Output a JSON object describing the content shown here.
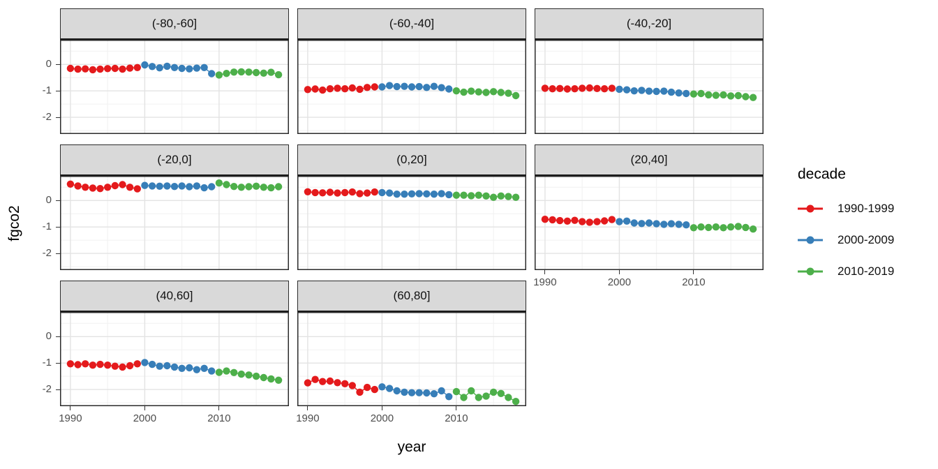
{
  "chart_data": {
    "type": "line",
    "title": "",
    "xlabel": "year",
    "ylabel": "fgco2",
    "xlim": [
      1988.6,
      2019.4
    ],
    "ylim": [
      -2.63,
      0.93
    ],
    "x_ticks": {
      "major": [
        1990,
        2000,
        2010
      ],
      "minor": [
        1995,
        2005,
        2015
      ],
      "labels": [
        "1990",
        "2000",
        "2010"
      ]
    },
    "y_ticks": {
      "major": [
        0,
        -1,
        -2
      ],
      "minor": [
        0.5,
        -0.5,
        -1.5,
        -2.5
      ],
      "labels": [
        "0",
        "-1",
        "-2"
      ]
    },
    "grid": "major+minor",
    "style": {
      "strip_bg": "#D9D9D9",
      "panel_border": "#2b2b2b",
      "grid_major": "#E3E3E3",
      "grid_minor": "#F1F1F1",
      "axis_text": "#4d4d4d"
    },
    "legend": {
      "title": "decade",
      "position": "right",
      "entries": [
        {
          "label": "1990-1999",
          "color": "#E41A1C"
        },
        {
          "label": "2000-2009",
          "color": "#377EB8"
        },
        {
          "label": "2010-2019",
          "color": "#4DAF4A"
        }
      ]
    },
    "facets": [
      {
        "label": "(-80,-60]",
        "series": [
          {
            "name": "1990-1999",
            "start_year": 1990,
            "values": [
              -0.15,
              -0.18,
              -0.17,
              -0.2,
              -0.18,
              -0.16,
              -0.15,
              -0.18,
              -0.14,
              -0.12
            ]
          },
          {
            "name": "2000-2009",
            "start_year": 2000,
            "values": [
              -0.02,
              -0.08,
              -0.13,
              -0.07,
              -0.12,
              -0.15,
              -0.17,
              -0.14,
              -0.12,
              -0.35
            ]
          },
          {
            "name": "2010-2019",
            "start_year": 2010,
            "values": [
              -0.4,
              -0.34,
              -0.29,
              -0.28,
              -0.29,
              -0.31,
              -0.33,
              -0.3,
              -0.39
            ]
          }
        ]
      },
      {
        "label": "(-60,-40]",
        "series": [
          {
            "name": "1990-1999",
            "start_year": 1990,
            "values": [
              -0.95,
              -0.93,
              -0.97,
              -0.92,
              -0.9,
              -0.92,
              -0.89,
              -0.94,
              -0.87,
              -0.85
            ]
          },
          {
            "name": "2000-2009",
            "start_year": 2000,
            "values": [
              -0.85,
              -0.8,
              -0.84,
              -0.83,
              -0.85,
              -0.84,
              -0.87,
              -0.83,
              -0.88,
              -0.93
            ]
          },
          {
            "name": "2010-2019",
            "start_year": 2010,
            "values": [
              -1.0,
              -1.05,
              -1.01,
              -1.04,
              -1.06,
              -1.03,
              -1.06,
              -1.09,
              -1.18
            ]
          }
        ]
      },
      {
        "label": "(-40,-20]",
        "series": [
          {
            "name": "1990-1999",
            "start_year": 1990,
            "values": [
              -0.9,
              -0.92,
              -0.91,
              -0.93,
              -0.92,
              -0.9,
              -0.89,
              -0.91,
              -0.92,
              -0.9
            ]
          },
          {
            "name": "2000-2009",
            "start_year": 2000,
            "values": [
              -0.94,
              -0.96,
              -1.0,
              -0.98,
              -1.01,
              -1.02,
              -1.01,
              -1.05,
              -1.08,
              -1.1
            ]
          },
          {
            "name": "2010-2019",
            "start_year": 2010,
            "values": [
              -1.12,
              -1.1,
              -1.15,
              -1.17,
              -1.15,
              -1.19,
              -1.18,
              -1.22,
              -1.25
            ]
          }
        ]
      },
      {
        "label": "(-20,0]",
        "series": [
          {
            "name": "1990-1999",
            "start_year": 1990,
            "values": [
              0.62,
              0.55,
              0.5,
              0.47,
              0.45,
              0.5,
              0.56,
              0.6,
              0.5,
              0.44
            ]
          },
          {
            "name": "2000-2009",
            "start_year": 2000,
            "values": [
              0.57,
              0.55,
              0.54,
              0.55,
              0.53,
              0.55,
              0.52,
              0.55,
              0.48,
              0.52
            ]
          },
          {
            "name": "2010-2019",
            "start_year": 2010,
            "values": [
              0.66,
              0.6,
              0.53,
              0.5,
              0.52,
              0.54,
              0.5,
              0.48,
              0.52
            ]
          }
        ]
      },
      {
        "label": "(0,20]",
        "series": [
          {
            "name": "1990-1999",
            "start_year": 1990,
            "values": [
              0.33,
              0.3,
              0.29,
              0.31,
              0.28,
              0.3,
              0.32,
              0.26,
              0.28,
              0.32
            ]
          },
          {
            "name": "2000-2009",
            "start_year": 2000,
            "values": [
              0.3,
              0.28,
              0.24,
              0.24,
              0.25,
              0.26,
              0.25,
              0.24,
              0.26,
              0.22
            ]
          },
          {
            "name": "2010-2019",
            "start_year": 2010,
            "values": [
              0.2,
              0.2,
              0.18,
              0.2,
              0.17,
              0.12,
              0.17,
              0.15,
              0.12
            ]
          }
        ]
      },
      {
        "label": "(20,40]",
        "series": [
          {
            "name": "1990-1999",
            "start_year": 1990,
            "values": [
              -0.71,
              -0.73,
              -0.76,
              -0.78,
              -0.75,
              -0.8,
              -0.82,
              -0.8,
              -0.77,
              -0.72
            ]
          },
          {
            "name": "2000-2009",
            "start_year": 2000,
            "values": [
              -0.8,
              -0.78,
              -0.85,
              -0.87,
              -0.85,
              -0.88,
              -0.9,
              -0.88,
              -0.9,
              -0.92
            ]
          },
          {
            "name": "2010-2019",
            "start_year": 2010,
            "values": [
              -1.03,
              -1.0,
              -1.02,
              -1.0,
              -1.03,
              -1.0,
              -0.98,
              -1.02,
              -1.08
            ]
          }
        ]
      },
      {
        "label": "(40,60]",
        "series": [
          {
            "name": "1990-1999",
            "start_year": 1990,
            "values": [
              -1.03,
              -1.06,
              -1.03,
              -1.08,
              -1.05,
              -1.08,
              -1.12,
              -1.15,
              -1.1,
              -1.03
            ]
          },
          {
            "name": "2000-2009",
            "start_year": 2000,
            "values": [
              -0.98,
              -1.05,
              -1.12,
              -1.1,
              -1.15,
              -1.2,
              -1.18,
              -1.25,
              -1.2,
              -1.3
            ]
          },
          {
            "name": "2010-2019",
            "start_year": 2010,
            "values": [
              -1.35,
              -1.3,
              -1.36,
              -1.42,
              -1.45,
              -1.5,
              -1.55,
              -1.6,
              -1.65
            ]
          }
        ]
      },
      {
        "label": "(60,80]",
        "series": [
          {
            "name": "1990-1999",
            "start_year": 1990,
            "values": [
              -1.75,
              -1.62,
              -1.7,
              -1.68,
              -1.74,
              -1.78,
              -1.85,
              -2.1,
              -1.92,
              -2.0
            ]
          },
          {
            "name": "2000-2009",
            "start_year": 2000,
            "values": [
              -1.9,
              -1.96,
              -2.05,
              -2.1,
              -2.12,
              -2.12,
              -2.13,
              -2.16,
              -2.05,
              -2.27
            ]
          },
          {
            "name": "2010-2019",
            "start_year": 2010,
            "values": [
              -2.08,
              -2.3,
              -2.05,
              -2.3,
              -2.25,
              -2.1,
              -2.15,
              -2.3,
              -2.45
            ]
          }
        ]
      }
    ]
  }
}
